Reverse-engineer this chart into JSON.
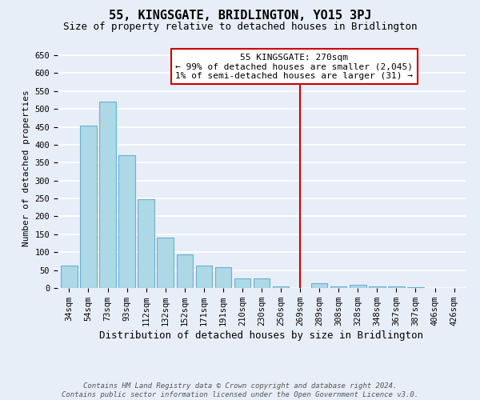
{
  "title": "55, KINGSGATE, BRIDLINGTON, YO15 3PJ",
  "subtitle": "Size of property relative to detached houses in Bridlington",
  "xlabel": "Distribution of detached houses by size in Bridlington",
  "ylabel": "Number of detached properties",
  "bar_labels": [
    "34sqm",
    "54sqm",
    "73sqm",
    "93sqm",
    "112sqm",
    "132sqm",
    "152sqm",
    "171sqm",
    "191sqm",
    "210sqm",
    "230sqm",
    "250sqm",
    "269sqm",
    "289sqm",
    "308sqm",
    "328sqm",
    "348sqm",
    "367sqm",
    "387sqm",
    "406sqm",
    "426sqm"
  ],
  "bar_values": [
    63,
    454,
    521,
    370,
    248,
    140,
    94,
    63,
    57,
    27,
    27,
    4,
    0,
    13,
    4,
    10,
    4,
    4,
    2,
    1,
    1
  ],
  "bar_color": "#add8e6",
  "bar_edge_color": "#6ab0d4",
  "highlight_index": 12,
  "highlight_line_color": "#cc0000",
  "annotation_line1": "55 KINGSGATE: 270sqm",
  "annotation_line2": "← 99% of detached houses are smaller (2,045)",
  "annotation_line3": "1% of semi-detached houses are larger (31) →",
  "annotation_box_color": "#ffffff",
  "annotation_box_edge_color": "#cc0000",
  "ylim": [
    0,
    670
  ],
  "yticks": [
    0,
    50,
    100,
    150,
    200,
    250,
    300,
    350,
    400,
    450,
    500,
    550,
    600,
    650
  ],
  "footer_line1": "Contains HM Land Registry data © Crown copyright and database right 2024.",
  "footer_line2": "Contains public sector information licensed under the Open Government Licence v3.0.",
  "bg_color": "#e8eef8",
  "grid_color": "#ffffff",
  "title_fontsize": 11,
  "subtitle_fontsize": 9,
  "xlabel_fontsize": 9,
  "ylabel_fontsize": 8,
  "tick_fontsize": 7.5,
  "footer_fontsize": 6.5,
  "annotation_fontsize": 8
}
